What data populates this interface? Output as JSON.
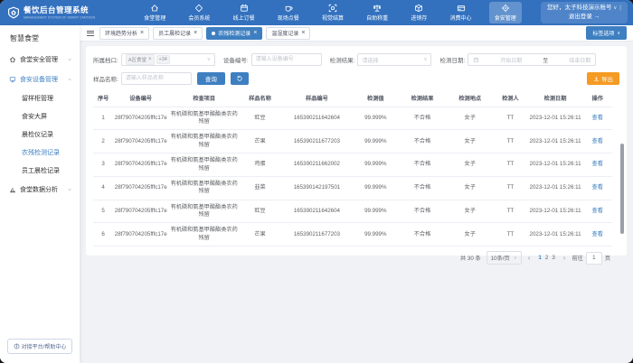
{
  "topbar": {
    "logo": {
      "title": "餐饮后台管理系统",
      "subtitle": "MANAGEMENT SYSTEM OF SMART CANTEEN"
    },
    "nav_items": [
      {
        "label": "食堂管理",
        "icon": "canteen-icon"
      },
      {
        "label": "会员系统",
        "icon": "member-icon"
      },
      {
        "label": "线上订餐",
        "icon": "online-order-icon"
      },
      {
        "label": "现场点餐",
        "icon": "onsite-order-icon"
      },
      {
        "label": "视觉结算",
        "icon": "visual-checkout-icon"
      },
      {
        "label": "自助称重",
        "icon": "weighing-icon"
      },
      {
        "label": "进销存",
        "icon": "inventory-icon"
      },
      {
        "label": "消费中心",
        "icon": "consumption-icon"
      },
      {
        "label": "食安管理",
        "icon": "food-safety-icon"
      }
    ],
    "active_nav": "食安管理",
    "user": {
      "greeting": "您好，太子科技演示账号",
      "logout": "退出登录"
    }
  },
  "sidebar": {
    "title": "智慧食堂",
    "groups": [
      {
        "label": "食堂安全管理",
        "icon": "home-icon",
        "expanded": false,
        "children": []
      },
      {
        "label": "食安设备管理",
        "icon": "device-icon",
        "expanded": true,
        "children": [
          "留样柜管理",
          "食安大屏",
          "晨检仪记录",
          "农残检测记录",
          "员工晨检记录"
        ]
      },
      {
        "label": "食堂数据分析",
        "icon": "chart-icon",
        "expanded": false,
        "children": []
      }
    ],
    "active_item": "农残检测记录",
    "footer_button": "对接平台/帮助中心"
  },
  "tabbar": {
    "tabs": [
      "环境趋势分析",
      "员工晨检记录",
      "农残检测记录",
      "温湿度记录"
    ],
    "active_tab": "农残检测记录",
    "options_button": "标签选项"
  },
  "filters": {
    "stall_label": "所属档口:",
    "stall_tag": "A区食堂",
    "stall_more": "+34",
    "device_label": "设备编号:",
    "device_placeholder": "请输入设备编号",
    "result_label": "检测结果:",
    "result_placeholder": "请选择",
    "date_label": "检测日期:",
    "date_start": "开始日期",
    "date_to": "至",
    "date_end": "结束日期",
    "sample_label": "样品名称:",
    "sample_placeholder": "请输入样品名称",
    "search_button": "查询",
    "export_button": "导出"
  },
  "table": {
    "columns": [
      "序号",
      "设备编号",
      "检查项目",
      "样品名称",
      "样品编号",
      "检测值",
      "检测结果",
      "检测地点",
      "检测人",
      "检测日期",
      "操作"
    ],
    "action_label": "查看",
    "rows": [
      {
        "no": "1",
        "device": "28f790704205fffc17e",
        "item": "有机磷和氨基甲酸酯类农药残留",
        "name": "豇豆",
        "code": "165390211642604",
        "value": "99.999%",
        "result": "不合格",
        "place": "女子",
        "person": "TT",
        "date": "2023-12-01 15:26:11"
      },
      {
        "no": "2",
        "device": "28f790704205fffc17e",
        "item": "有机磷和氨基甲酸酯类农药残留",
        "name": "芒果",
        "code": "165390211677203",
        "value": "99.999%",
        "result": "不合格",
        "place": "女子",
        "person": "TT",
        "date": "2023-12-01 15:26:11"
      },
      {
        "no": "3",
        "device": "28f790704205fffc17e",
        "item": "有机磷和氨基甲酸酯类农药残留",
        "name": "鸡蛋",
        "code": "165390211662002",
        "value": "99.999%",
        "result": "不合格",
        "place": "女子",
        "person": "TT",
        "date": "2023-12-01 15:26:11"
      },
      {
        "no": "4",
        "device": "28f790704205fffc17e",
        "item": "有机磷和氨基甲酸酯类农药残留",
        "name": "韭菜",
        "code": "165390142197501",
        "value": "99.999%",
        "result": "不合格",
        "place": "女子",
        "person": "TT",
        "date": "2023-12-01 15:26:11"
      },
      {
        "no": "5",
        "device": "28f790704205fffc17e",
        "item": "有机磷和氨基甲酸酯类农药残留",
        "name": "豇豆",
        "code": "165390211642604",
        "value": "99.999%",
        "result": "不合格",
        "place": "女子",
        "person": "TT",
        "date": "2023-12-01 15:26:11"
      },
      {
        "no": "6",
        "device": "28f790704205fffc17e",
        "item": "有机磷和氨基甲酸酯类农药残留",
        "name": "芒果",
        "code": "165390211677203",
        "value": "99.999%",
        "result": "不合格",
        "place": "女子",
        "person": "TT",
        "date": "2023-12-01 15:26:11"
      }
    ]
  },
  "pagination": {
    "total": "共 30 条",
    "page_size": "10条/页",
    "pages": [
      "1",
      "2",
      "3"
    ],
    "active_page": "1",
    "prev": "‹",
    "next": "›",
    "goto_label": "前往",
    "goto_value": "1",
    "goto_suffix": "页"
  },
  "colors": {
    "primary": "#3e7fc1",
    "topbar": "#3371bf",
    "export": "#f59a23",
    "background": "#f0f2f5"
  }
}
